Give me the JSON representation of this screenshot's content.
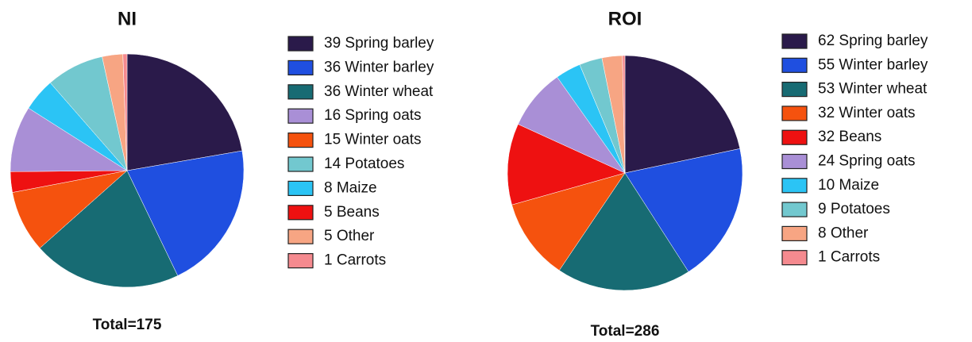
{
  "chart_data": [
    {
      "type": "pie",
      "title": "NI",
      "total": "Total=175",
      "categories": [
        "Spring barley",
        "Winter barley",
        "Winter wheat",
        "Winter oats",
        "Beans",
        "Spring oats",
        "Maize",
        "Potatoes",
        "Other",
        "Carrots"
      ],
      "values": [
        39,
        36,
        36,
        15,
        5,
        16,
        8,
        14,
        5,
        1
      ],
      "colors": [
        "#2a1a4a",
        "#1f4fe0",
        "#176b73",
        "#f5520e",
        "#ee1111",
        "#a98fd6",
        "#2bc4f5",
        "#72c8cf",
        "#f7a583",
        "#f58a8f"
      ]
    },
    {
      "type": "pie",
      "title": "ROI",
      "total": "Total=286",
      "categories": [
        "Spring barley",
        "Winter barley",
        "Winter wheat",
        "Winter oats",
        "Beans",
        "Spring oats",
        "Maize",
        "Potatoes",
        "Other",
        "Carrots"
      ],
      "values": [
        62,
        55,
        53,
        32,
        32,
        24,
        10,
        9,
        8,
        1
      ],
      "colors": [
        "#2a1a4a",
        "#1f4fe0",
        "#176b73",
        "#f5520e",
        "#ee1111",
        "#a98fd6",
        "#2bc4f5",
        "#72c8cf",
        "#f7a583",
        "#f58a8f"
      ]
    }
  ]
}
